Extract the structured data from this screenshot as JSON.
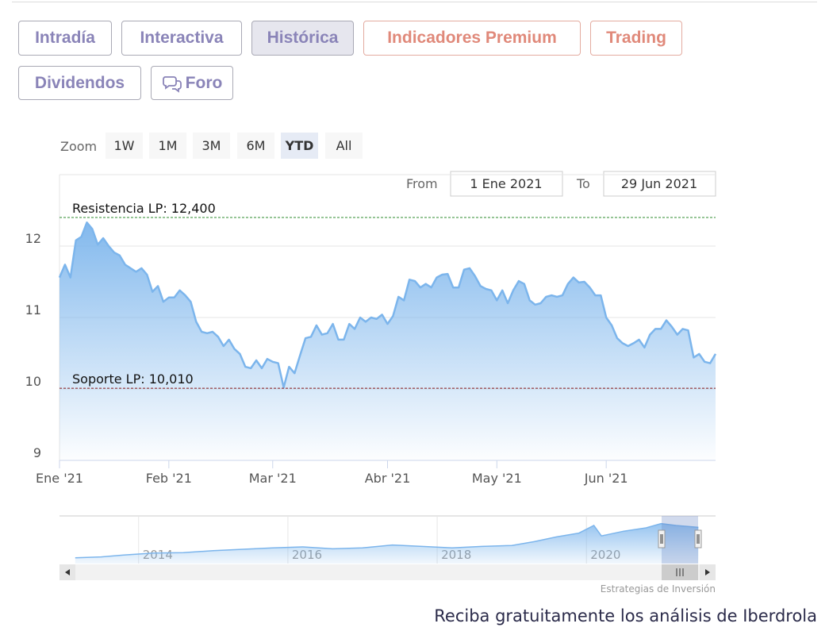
{
  "tabs": [
    "Intradía",
    "Interactiva",
    "Histórica",
    "Indicadores Premium",
    "Trading",
    "Dividendos",
    "Foro"
  ],
  "chart_data": {
    "type": "area",
    "zoom_label": "Zoom",
    "zoom_buttons": [
      "1W",
      "1M",
      "3M",
      "6M",
      "YTD",
      "All"
    ],
    "from_label": "From",
    "from": "1 Ene 2021",
    "to_label": "To",
    "to": "29 Jun 2021",
    "color": "#7cb5ec",
    "grid": true,
    "ylim": [
      9,
      13
    ],
    "yticks": [
      9,
      10,
      11,
      12
    ],
    "categories": [
      "Ene '21",
      null,
      null,
      null,
      null,
      null,
      null,
      null,
      null,
      null,
      null,
      null,
      null,
      null,
      null,
      null,
      null,
      null,
      null,
      null,
      "Feb '21",
      null,
      null,
      null,
      null,
      null,
      null,
      null,
      null,
      null,
      null,
      null,
      null,
      null,
      null,
      null,
      null,
      null,
      null,
      "Mar '21",
      null,
      null,
      null,
      null,
      null,
      null,
      null,
      null,
      null,
      null,
      null,
      null,
      null,
      null,
      null,
      null,
      null,
      null,
      null,
      null,
      "Abr '21",
      null,
      null,
      null,
      null,
      null,
      null,
      null,
      null,
      null,
      null,
      null,
      null,
      null,
      null,
      null,
      null,
      null,
      null,
      null,
      "May '21",
      null,
      null,
      null,
      null,
      null,
      null,
      null,
      null,
      null,
      null,
      null,
      null,
      null,
      null,
      null,
      null,
      null,
      null,
      null,
      "Jun '21",
      null,
      null,
      null,
      null,
      null,
      null,
      null,
      null,
      null,
      null,
      null,
      null,
      null,
      null,
      null,
      null,
      null,
      null,
      null,
      null
    ],
    "values": [
      11.56,
      11.74,
      11.56,
      12.08,
      12.13,
      12.33,
      12.24,
      12.02,
      12.11,
      12.0,
      11.91,
      11.87,
      11.74,
      11.69,
      11.64,
      11.69,
      11.6,
      11.36,
      11.44,
      11.22,
      11.28,
      11.28,
      11.38,
      11.31,
      11.22,
      10.94,
      10.8,
      10.78,
      10.8,
      10.73,
      10.6,
      10.69,
      10.56,
      10.49,
      10.31,
      10.29,
      10.4,
      10.29,
      10.42,
      10.38,
      10.36,
      10.02,
      10.31,
      10.22,
      10.47,
      10.71,
      10.73,
      10.89,
      10.76,
      10.78,
      10.91,
      10.69,
      10.69,
      10.91,
      10.84,
      11.0,
      10.94,
      11.0,
      10.98,
      11.04,
      10.91,
      11.02,
      11.29,
      11.24,
      11.53,
      11.51,
      11.42,
      11.47,
      11.42,
      11.56,
      11.6,
      11.61,
      11.42,
      11.42,
      11.67,
      11.69,
      11.58,
      11.44,
      11.4,
      11.38,
      11.24,
      11.38,
      11.2,
      11.38,
      11.51,
      11.47,
      11.24,
      11.18,
      11.2,
      11.29,
      11.31,
      11.29,
      11.31,
      11.47,
      11.56,
      11.49,
      11.5,
      11.42,
      11.31,
      11.31,
      11.0,
      10.89,
      10.71,
      10.64,
      10.6,
      10.64,
      10.69,
      10.58,
      10.76,
      10.84,
      10.84,
      10.96,
      10.87,
      10.76,
      10.84,
      10.82,
      10.44,
      10.49,
      10.38,
      10.36,
      10.49
    ],
    "plot_lines": [
      {
        "label": "Resistencia LP: 12,400",
        "value": 12.4,
        "color": "#2e8b2e"
      },
      {
        "label": "Soporte LP: 10,010",
        "value": 10.01,
        "color": "#8b1a1a"
      }
    ],
    "navigator": {
      "xlim": [
        2012.94,
        2021.73
      ],
      "xticks": [
        2014,
        2016,
        2018,
        2020
      ],
      "ylim": [
        3,
        13
      ],
      "x": [
        2013.15,
        2013.5,
        2013.8,
        2014.2,
        2014.6,
        2015.0,
        2015.4,
        2015.8,
        2016.2,
        2016.6,
        2017.0,
        2017.4,
        2017.8,
        2018.2,
        2018.6,
        2019.0,
        2019.3,
        2019.6,
        2019.9,
        2020.1,
        2020.2,
        2020.5,
        2020.8,
        2021.0,
        2021.2,
        2021.5
      ],
      "values": [
        4.2,
        4.4,
        4.8,
        5.2,
        5.3,
        5.7,
        6.0,
        6.3,
        6.5,
        6.1,
        6.3,
        6.9,
        6.6,
        6.3,
        6.6,
        6.8,
        7.6,
        8.6,
        9.4,
        11.0,
        8.8,
        9.8,
        10.5,
        11.4,
        11.0,
        10.6
      ]
    },
    "credit": "Estrategias de Inversión"
  },
  "footer_text": "Reciba gratuitamente los análisis de Iberdrola"
}
